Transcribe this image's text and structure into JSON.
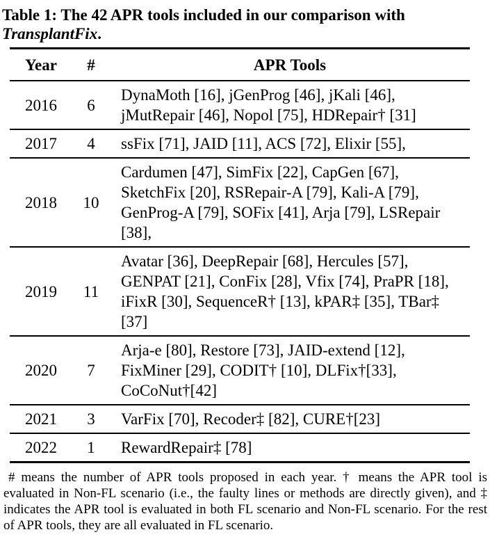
{
  "caption": {
    "label_part": "Table 1: The 42 APR tools included in our comparison with",
    "tool_name": "TransplantFix",
    "period": "."
  },
  "table": {
    "headers": [
      "Year",
      "#",
      "APR Tools"
    ],
    "rows": [
      {
        "year": "2016",
        "count": "6",
        "tools": "DynaMoth [16], jGenProg [46], jKali [46], jMutRepair [46], Nopol [75], HDRepair† [31]"
      },
      {
        "year": "2017",
        "count": "4",
        "tools": "ssFix [71], JAID [11], ACS [72], Elixir [55],"
      },
      {
        "year": "2018",
        "count": "10",
        "tools": "Cardumen [47], SimFix [22], CapGen [67], SketchFix [20], RSRepair-A [79], Kali-A [79], GenProg-A [79], SOFix [41], Arja [79], LSRepair [38],"
      },
      {
        "year": "2019",
        "count": "11",
        "tools": "Avatar [36], DeepRepair [68], Hercules [57], GENPAT [21], ConFix [28], Vfix [74], PraPR [18], iFixR [30], SequenceR† [13], kPAR‡ [35], TBar‡ [37]"
      },
      {
        "year": "2020",
        "count": "7",
        "tools": "Arja-e [80], Restore [73], JAID-extend [12], FixMiner [29], CODIT† [10], DLFix†[33], CoCoNut†[42]"
      },
      {
        "year": "2021",
        "count": "3",
        "tools": "VarFix [70], Recoder‡ [82], CURE†[23]"
      },
      {
        "year": "2022",
        "count": "1",
        "tools": "RewardRepair‡ [78]"
      }
    ]
  },
  "footnote": "# means the number of APR tools proposed in each year. † means the APR tool is evaluated in Non-FL scenario (i.e., the faulty lines or methods are directly given), and ‡ indicates the APR tool is evaluated in both FL scenario and Non-FL scenario. For the rest of APR tools, they are all evaluated in FL scenario."
}
